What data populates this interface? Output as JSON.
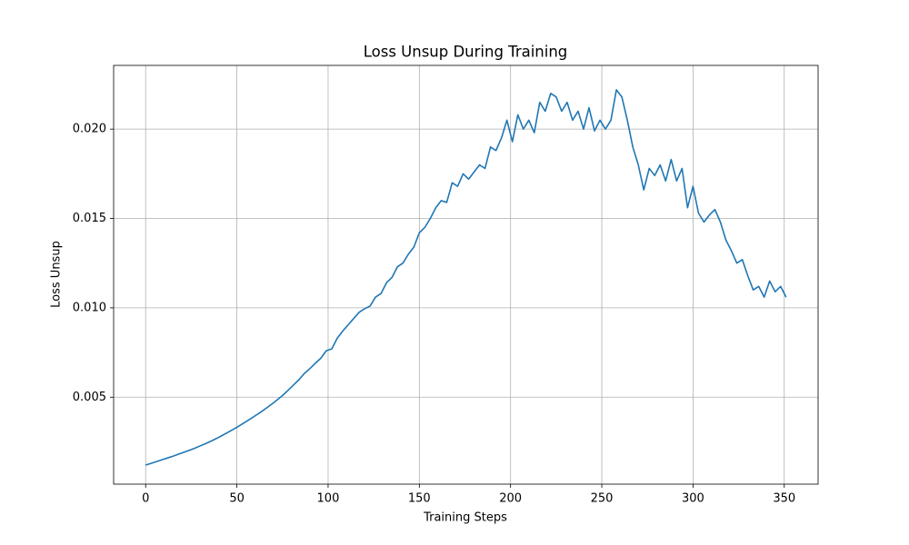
{
  "chart_data": {
    "type": "line",
    "title": "Loss Unsup During Training",
    "x_label": "Training Steps",
    "y_label": "Loss Unsup",
    "x": [
      0,
      3,
      6,
      9,
      12,
      15,
      18,
      21,
      24,
      27,
      30,
      33,
      36,
      39,
      42,
      45,
      48,
      51,
      54,
      57,
      60,
      63,
      66,
      69,
      72,
      75,
      78,
      81,
      84,
      87,
      90,
      93,
      96,
      99,
      102,
      105,
      108,
      111,
      114,
      117,
      120,
      123,
      126,
      129,
      132,
      135,
      138,
      141,
      144,
      147,
      150,
      153,
      156,
      159,
      162,
      165,
      168,
      171,
      174,
      177,
      180,
      183,
      186,
      189,
      192,
      195,
      198,
      201,
      204,
      207,
      210,
      213,
      216,
      219,
      222,
      225,
      228,
      231,
      234,
      237,
      240,
      243,
      246,
      249,
      252,
      255,
      258,
      261,
      264,
      267,
      270,
      273,
      276,
      279,
      282,
      285,
      288,
      291,
      294,
      297,
      300,
      303,
      306,
      309,
      312,
      315,
      318,
      321,
      324,
      327,
      330,
      333,
      336,
      339,
      342,
      345,
      348,
      351
    ],
    "series": [
      {
        "name": "Loss Unsup",
        "color": "#1f77b4",
        "values": [
          0.0012,
          0.0013,
          0.0014,
          0.0015,
          0.0016,
          0.0017,
          0.00181,
          0.00192,
          0.00203,
          0.00215,
          0.00228,
          0.00241,
          0.00255,
          0.0027,
          0.00286,
          0.00303,
          0.0032,
          0.00338,
          0.00357,
          0.00376,
          0.00396,
          0.00416,
          0.00438,
          0.0046,
          0.00484,
          0.00509,
          0.00538,
          0.00568,
          0.00598,
          0.00633,
          0.0066,
          0.0069,
          0.00718,
          0.0076,
          0.0077,
          0.0083,
          0.0087,
          0.00905,
          0.0094,
          0.00975,
          0.00995,
          0.0101,
          0.0106,
          0.0108,
          0.0114,
          0.0117,
          0.0123,
          0.0125,
          0.013,
          0.0134,
          0.0142,
          0.0145,
          0.015,
          0.0156,
          0.016,
          0.0159,
          0.017,
          0.0168,
          0.0175,
          0.0172,
          0.0176,
          0.018,
          0.0178,
          0.019,
          0.0188,
          0.0195,
          0.0205,
          0.0193,
          0.0208,
          0.02,
          0.0205,
          0.0198,
          0.0215,
          0.021,
          0.022,
          0.0218,
          0.021,
          0.0215,
          0.0205,
          0.021,
          0.02,
          0.0212,
          0.0199,
          0.0205,
          0.02,
          0.0205,
          0.0222,
          0.0218,
          0.0205,
          0.019,
          0.018,
          0.0166,
          0.0178,
          0.0174,
          0.018,
          0.0171,
          0.0183,
          0.0171,
          0.0178,
          0.0156,
          0.0168,
          0.0153,
          0.0148,
          0.0152,
          0.0155,
          0.0148,
          0.0138,
          0.0132,
          0.0125,
          0.0127,
          0.0118,
          0.011,
          0.0112,
          0.0106,
          0.0115,
          0.0109,
          0.0112,
          0.0106
        ]
      }
    ],
    "xlim": [
      -17.55,
      368.55
    ],
    "ylim": [
      0.000135,
      0.023565
    ],
    "xticks": [
      0,
      50,
      100,
      150,
      200,
      250,
      300,
      350
    ],
    "yticks": [
      {
        "value": 0.005,
        "label": "0.005"
      },
      {
        "value": 0.01,
        "label": "0.010"
      },
      {
        "value": 0.015,
        "label": "0.015"
      },
      {
        "value": 0.02,
        "label": "0.020"
      }
    ],
    "grid": true
  }
}
